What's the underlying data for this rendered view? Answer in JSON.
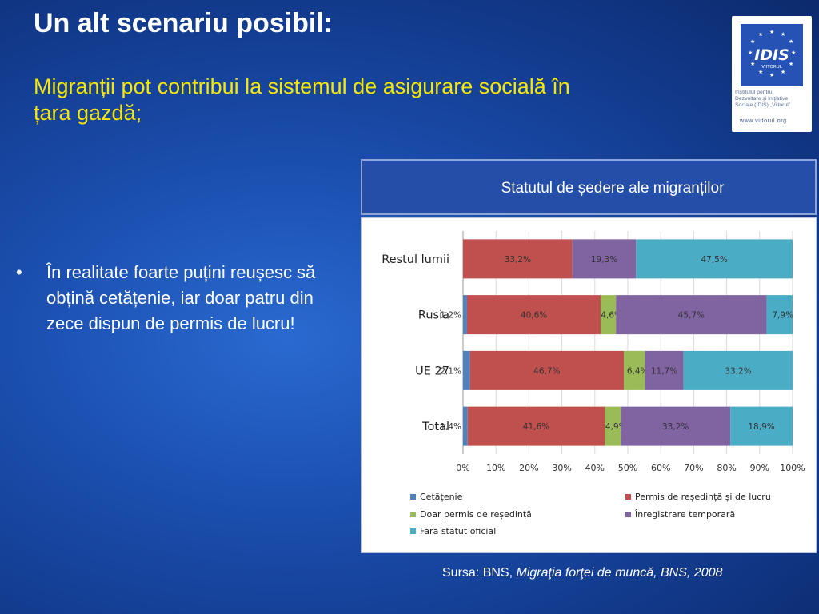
{
  "slide": {
    "title": "Un alt scenariu posibil:",
    "subtitle": "Migranții pot contribui la sistemul de asigurare socială în țara gazdă;",
    "bullet": "În realitate foarte puțini reușesc să obțină cetățenie, iar doar patru din zece dispun de permis de lucru!",
    "bullet_marker": "•",
    "source_prefix": "Sursa: BNS, ",
    "source_italic": "Migraţia forţei de muncă, BNS, 2008"
  },
  "logo": {
    "mark": "IDIS",
    "tagline": "VIITORUL",
    "org_lines": [
      "Institutul pentru",
      "Dezvoltare şi Iniţiative",
      "Sociale (IDIS) „Viitorul”"
    ],
    "url": "www.viitorul.org",
    "color": "#2651b5"
  },
  "chart_header": "Statutul de ședere ale migranților",
  "chart_data": {
    "type": "bar",
    "orientation": "horizontal",
    "stacked": true,
    "percent": true,
    "categories": [
      "Restul lumii",
      "Rusia",
      "UE 27",
      "Total"
    ],
    "xlim": [
      0,
      100
    ],
    "xticks": [
      "0%",
      "10%",
      "20%",
      "30%",
      "40%",
      "50%",
      "60%",
      "70%",
      "80%",
      "90%",
      "100%"
    ],
    "grid": true,
    "legend_position": "bottom",
    "series": [
      {
        "name": "Cetățenie",
        "color": "#4f81bd",
        "values": [
          0,
          1.2,
          2.1,
          1.4
        ],
        "labels": [
          "",
          "1,2%",
          "2,1%",
          "1,4%"
        ]
      },
      {
        "name": "Permis de reședință și de lucru",
        "color": "#c0504d",
        "values": [
          33.2,
          40.6,
          46.7,
          41.6
        ],
        "labels": [
          "33,2%",
          "40,6%",
          "46,7%",
          "41,6%"
        ]
      },
      {
        "name": "Doar permis de reședință",
        "color": "#9bbb59",
        "values": [
          0,
          4.6,
          6.4,
          4.9
        ],
        "labels": [
          "",
          "4,6%",
          "6,4%",
          "4,9%"
        ]
      },
      {
        "name": "Înregistrare temporară",
        "color": "#8064a2",
        "values": [
          19.3,
          45.7,
          11.7,
          33.2
        ],
        "labels": [
          "19,3%",
          "45,7%",
          "11,7%",
          "33,2%"
        ]
      },
      {
        "name": "Fără statut oficial",
        "color": "#4bacc6",
        "values": [
          47.5,
          7.9,
          33.2,
          18.9
        ],
        "labels": [
          "47,5%",
          "7,9%",
          "33,2%",
          "18,9%"
        ]
      }
    ]
  }
}
